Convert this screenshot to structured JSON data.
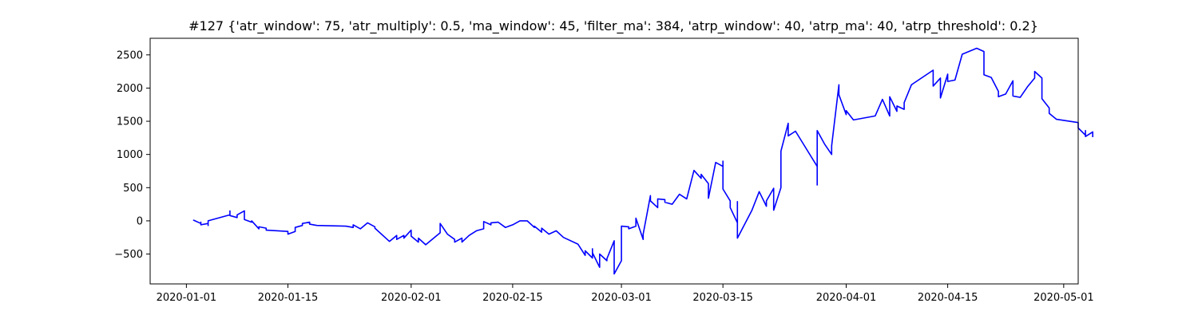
{
  "chart_data": {
    "type": "line",
    "title": "#127 {'atr_window': 75, 'atr_multiply': 0.5, 'ma_window': 45, 'filter_ma': 384, 'atrp_window': 40, 'atrp_ma': 40, 'atrp_threshold': 0.2}",
    "xlabel": "",
    "ylabel": "",
    "x_type": "date",
    "xlim": [
      "2019-12-27",
      "2020-05-03"
    ],
    "ylim": [
      -950,
      2750
    ],
    "grid": false,
    "line_color": "#0000ff",
    "x_ticks": [
      "2020-01-01",
      "2020-01-15",
      "2020-02-01",
      "2020-02-15",
      "2020-03-01",
      "2020-03-15",
      "2020-04-01",
      "2020-04-15",
      "2020-05-01"
    ],
    "y_ticks": [
      -500,
      0,
      500,
      1000,
      1500,
      2000,
      2500
    ],
    "series": [
      {
        "points": [
          [
            "2020-01-02",
            0
          ],
          [
            "2020-01-02",
            10
          ],
          [
            "2020-01-03",
            -40
          ],
          [
            "2020-01-03",
            -20
          ],
          [
            "2020-01-03",
            -60
          ],
          [
            "2020-01-04",
            -40
          ],
          [
            "2020-01-04",
            -70
          ],
          [
            "2020-01-04",
            0
          ],
          [
            "2020-01-07",
            90
          ],
          [
            "2020-01-07",
            150
          ],
          [
            "2020-01-07",
            80
          ],
          [
            "2020-01-08",
            50
          ],
          [
            "2020-01-08",
            90
          ],
          [
            "2020-01-09",
            150
          ],
          [
            "2020-01-09",
            20
          ],
          [
            "2020-01-10",
            -20
          ],
          [
            "2020-01-10",
            0
          ],
          [
            "2020-01-11",
            -120
          ],
          [
            "2020-01-11",
            -90
          ],
          [
            "2020-01-12",
            -110
          ],
          [
            "2020-01-12",
            -140
          ],
          [
            "2020-01-15",
            -160
          ],
          [
            "2020-01-15",
            -200
          ],
          [
            "2020-01-16",
            -160
          ],
          [
            "2020-01-16",
            -100
          ],
          [
            "2020-01-17",
            -70
          ],
          [
            "2020-01-17",
            -40
          ],
          [
            "2020-01-18",
            -20
          ],
          [
            "2020-01-18",
            -50
          ],
          [
            "2020-01-19",
            -70
          ],
          [
            "2020-01-23",
            -80
          ],
          [
            "2020-01-24",
            -100
          ],
          [
            "2020-01-24",
            -60
          ],
          [
            "2020-01-25",
            -120
          ],
          [
            "2020-01-26",
            -30
          ],
          [
            "2020-01-27",
            -90
          ],
          [
            "2020-01-27",
            -110
          ],
          [
            "2020-01-29",
            -310
          ],
          [
            "2020-01-30",
            -220
          ],
          [
            "2020-01-30",
            -280
          ],
          [
            "2020-01-31",
            -220
          ],
          [
            "2020-01-31",
            -260
          ],
          [
            "2020-02-01",
            -140
          ],
          [
            "2020-02-01",
            -230
          ],
          [
            "2020-02-02",
            -320
          ],
          [
            "2020-02-02",
            -260
          ],
          [
            "2020-02-03",
            -360
          ],
          [
            "2020-02-05",
            -180
          ],
          [
            "2020-02-05",
            -40
          ],
          [
            "2020-02-06",
            -200
          ],
          [
            "2020-02-07",
            -280
          ],
          [
            "2020-02-07",
            -320
          ],
          [
            "2020-02-08",
            -260
          ],
          [
            "2020-02-08",
            -320
          ],
          [
            "2020-02-09",
            -220
          ],
          [
            "2020-02-10",
            -150
          ],
          [
            "2020-02-11",
            -120
          ],
          [
            "2020-02-11",
            -10
          ],
          [
            "2020-02-12",
            -60
          ],
          [
            "2020-02-12",
            -30
          ],
          [
            "2020-02-13",
            -20
          ],
          [
            "2020-02-14",
            -100
          ],
          [
            "2020-02-15",
            -60
          ],
          [
            "2020-02-16",
            0
          ],
          [
            "2020-02-17",
            0
          ],
          [
            "2020-02-18",
            -100
          ],
          [
            "2020-02-18",
            -80
          ],
          [
            "2020-02-19",
            -170
          ],
          [
            "2020-02-19",
            -110
          ],
          [
            "2020-02-20",
            -200
          ],
          [
            "2020-02-21",
            -150
          ],
          [
            "2020-02-22",
            -250
          ],
          [
            "2020-02-24",
            -350
          ],
          [
            "2020-02-25",
            -520
          ],
          [
            "2020-02-25",
            -450
          ],
          [
            "2020-02-26",
            -560
          ],
          [
            "2020-02-26",
            -420
          ],
          [
            "2020-02-26",
            -480
          ],
          [
            "2020-02-27",
            -700
          ],
          [
            "2020-02-27",
            -500
          ],
          [
            "2020-02-28",
            -600
          ],
          [
            "2020-02-28",
            -570
          ],
          [
            "2020-02-29",
            -300
          ],
          [
            "2020-02-29",
            -800
          ],
          [
            "2020-03-01",
            -600
          ],
          [
            "2020-03-01",
            -80
          ],
          [
            "2020-03-02",
            -90
          ],
          [
            "2020-03-02",
            -120
          ],
          [
            "2020-03-03",
            -80
          ],
          [
            "2020-03-03",
            40
          ],
          [
            "2020-03-04",
            -280
          ],
          [
            "2020-03-04",
            -200
          ],
          [
            "2020-03-05",
            380
          ],
          [
            "2020-03-05",
            300
          ],
          [
            "2020-03-06",
            200
          ],
          [
            "2020-03-06",
            330
          ],
          [
            "2020-03-07",
            320
          ],
          [
            "2020-03-07",
            280
          ],
          [
            "2020-03-08",
            250
          ],
          [
            "2020-03-09",
            400
          ],
          [
            "2020-03-10",
            330
          ],
          [
            "2020-03-11",
            760
          ],
          [
            "2020-03-12",
            640
          ],
          [
            "2020-03-12",
            700
          ],
          [
            "2020-03-13",
            560
          ],
          [
            "2020-03-13",
            340
          ],
          [
            "2020-03-14",
            880
          ],
          [
            "2020-03-15",
            820
          ],
          [
            "2020-03-15",
            900
          ],
          [
            "2020-03-15",
            480
          ],
          [
            "2020-03-16",
            300
          ],
          [
            "2020-03-16",
            200
          ],
          [
            "2020-03-17",
            -30
          ],
          [
            "2020-03-17",
            290
          ],
          [
            "2020-03-17",
            -260
          ],
          [
            "2020-03-19",
            160
          ],
          [
            "2020-03-20",
            440
          ],
          [
            "2020-03-21",
            220
          ],
          [
            "2020-03-21",
            300
          ],
          [
            "2020-03-22",
            490
          ],
          [
            "2020-03-22",
            160
          ],
          [
            "2020-03-23",
            500
          ],
          [
            "2020-03-23",
            1050
          ],
          [
            "2020-03-24",
            1470
          ],
          [
            "2020-03-24",
            1280
          ],
          [
            "2020-03-25",
            1350
          ],
          [
            "2020-03-28",
            820
          ],
          [
            "2020-03-28",
            540
          ],
          [
            "2020-03-28",
            1360
          ],
          [
            "2020-03-29",
            1160
          ],
          [
            "2020-03-30",
            1000
          ],
          [
            "2020-03-30",
            1130
          ],
          [
            "2020-03-31",
            2050
          ],
          [
            "2020-03-31",
            1900
          ],
          [
            "2020-04-01",
            1600
          ],
          [
            "2020-04-01",
            1660
          ],
          [
            "2020-04-02",
            1520
          ],
          [
            "2020-04-05",
            1580
          ],
          [
            "2020-04-06",
            1830
          ],
          [
            "2020-04-07",
            1580
          ],
          [
            "2020-04-07",
            1870
          ],
          [
            "2020-04-08",
            1650
          ],
          [
            "2020-04-08",
            1730
          ],
          [
            "2020-04-09",
            1680
          ],
          [
            "2020-04-09",
            1780
          ],
          [
            "2020-04-10",
            2050
          ],
          [
            "2020-04-13",
            2270
          ],
          [
            "2020-04-13",
            2030
          ],
          [
            "2020-04-14",
            2150
          ],
          [
            "2020-04-14",
            1850
          ],
          [
            "2020-04-15",
            2210
          ],
          [
            "2020-04-15",
            2100
          ],
          [
            "2020-04-16",
            2120
          ],
          [
            "2020-04-17",
            2510
          ],
          [
            "2020-04-19",
            2600
          ],
          [
            "2020-04-20",
            2550
          ],
          [
            "2020-04-20",
            2200
          ],
          [
            "2020-04-21",
            2160
          ],
          [
            "2020-04-22",
            1950
          ],
          [
            "2020-04-22",
            1870
          ],
          [
            "2020-04-23",
            1910
          ],
          [
            "2020-04-24",
            2110
          ],
          [
            "2020-04-24",
            1880
          ],
          [
            "2020-04-25",
            1860
          ],
          [
            "2020-04-26",
            2020
          ],
          [
            "2020-04-27",
            2150
          ],
          [
            "2020-04-27",
            2250
          ],
          [
            "2020-04-28",
            2150
          ],
          [
            "2020-04-28",
            1840
          ],
          [
            "2020-04-29",
            1700
          ],
          [
            "2020-04-29",
            1620
          ],
          [
            "2020-04-30",
            1530
          ],
          [
            "2020-05-03",
            1480
          ],
          [
            "2020-05-03",
            1400
          ],
          [
            "2020-05-04",
            1290
          ],
          [
            "2020-05-04",
            1360
          ],
          [
            "2020-05-04",
            1270
          ],
          [
            "2020-05-05",
            1340
          ],
          [
            "2020-05-05",
            1260
          ]
        ]
      }
    ]
  }
}
